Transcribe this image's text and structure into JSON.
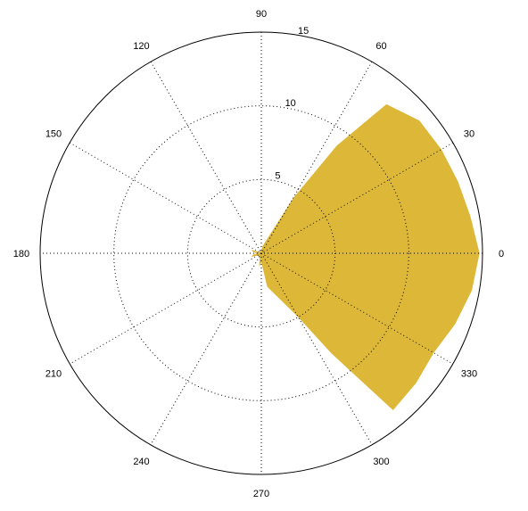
{
  "chart_data": {
    "type": "polar",
    "title": "",
    "theta_unit": "degrees",
    "theta_ticks": [
      0,
      30,
      60,
      90,
      120,
      150,
      180,
      210,
      240,
      270,
      300,
      330
    ],
    "theta_tick_labels": [
      "0",
      "30",
      "60",
      "90",
      "120",
      "150",
      "180",
      "210",
      "240",
      "270",
      "300",
      "330"
    ],
    "r_lim": [
      0,
      15
    ],
    "r_ticks": [
      5,
      10,
      15
    ],
    "r_tick_labels": [
      "5",
      "10",
      "15"
    ],
    "grid": true,
    "fill_color": "#DDB838",
    "series": [
      {
        "theta": [
          90,
          80,
          60,
          55,
          50,
          40,
          30,
          20,
          10,
          0,
          350,
          340,
          330,
          320,
          310,
          305,
          300,
          280,
          270,
          265,
          260,
          250,
          210,
          200,
          190,
          180,
          170,
          160,
          150,
          110,
          100
        ],
        "r": [
          0.2,
          0.5,
          4.3,
          8.9,
          13.2,
          14.0,
          14.1,
          14.2,
          14.4,
          14.8,
          14.5,
          14.0,
          13.5,
          13.7,
          13.9,
          8.3,
          5.0,
          2.3,
          0.6,
          0.8,
          0.9,
          0.3,
          0.3,
          0.7,
          0.6,
          0.3,
          0.6,
          0.7,
          0.1,
          0.2,
          0.2
        ]
      }
    ]
  }
}
